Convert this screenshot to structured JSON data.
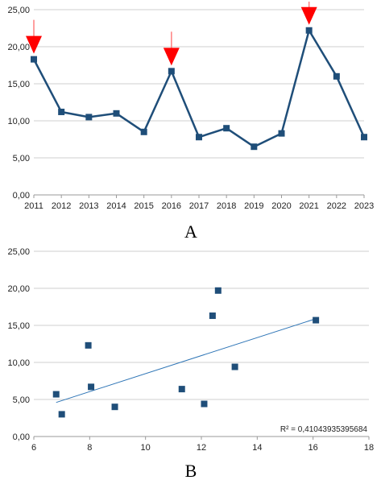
{
  "panels": [
    {
      "label": "A"
    },
    {
      "label": "B"
    }
  ],
  "chart_data": [
    {
      "type": "line",
      "title": "",
      "xlabel": "",
      "ylabel": "",
      "categories": [
        "2011",
        "2012",
        "2013",
        "2014",
        "2015",
        "2016",
        "2017",
        "2018",
        "2019",
        "2020",
        "2021",
        "2022",
        "2023"
      ],
      "series": [
        {
          "values": [
            18.3,
            11.2,
            10.5,
            11.0,
            8.5,
            16.7,
            7.8,
            9.0,
            6.5,
            8.3,
            22.2,
            16.0,
            7.8
          ]
        }
      ],
      "ylim": [
        0,
        25
      ],
      "yticks": [
        "0,00",
        "5,00",
        "10,00",
        "15,00",
        "20,00",
        "25,00"
      ],
      "grid": "horizontal",
      "line_color": "#1f4e79",
      "marker_color": "#1f4e79",
      "annotations": {
        "peak_arrows_at": [
          "2011",
          "2016",
          "2021"
        ],
        "arrow_color": "#ff0000"
      }
    },
    {
      "type": "scatter",
      "title": "",
      "xlabel": "",
      "ylabel": "",
      "points": [
        {
          "x": 6.8,
          "y": 5.7
        },
        {
          "x": 7.0,
          "y": 3.0
        },
        {
          "x": 7.95,
          "y": 12.3
        },
        {
          "x": 8.05,
          "y": 6.7
        },
        {
          "x": 8.9,
          "y": 4.0
        },
        {
          "x": 11.3,
          "y": 6.4
        },
        {
          "x": 12.1,
          "y": 4.4
        },
        {
          "x": 12.4,
          "y": 16.3
        },
        {
          "x": 12.6,
          "y": 19.7
        },
        {
          "x": 13.2,
          "y": 9.4
        },
        {
          "x": 16.1,
          "y": 15.7
        }
      ],
      "trendline": {
        "x": [
          6.8,
          16.1
        ],
        "y": [
          4.6,
          15.9
        ]
      },
      "r_squared_label": "R² = 0,41043935395684",
      "xlim": [
        6,
        18
      ],
      "ylim": [
        0,
        25
      ],
      "xticks": [
        "6",
        "8",
        "10",
        "12",
        "14",
        "16",
        "18"
      ],
      "yticks": [
        "0,00",
        "5,00",
        "10,00",
        "15,00",
        "20,00",
        "25,00"
      ],
      "grid": "horizontal",
      "marker_color": "#1f4e79",
      "trendline_color": "#2e75b6"
    }
  ]
}
